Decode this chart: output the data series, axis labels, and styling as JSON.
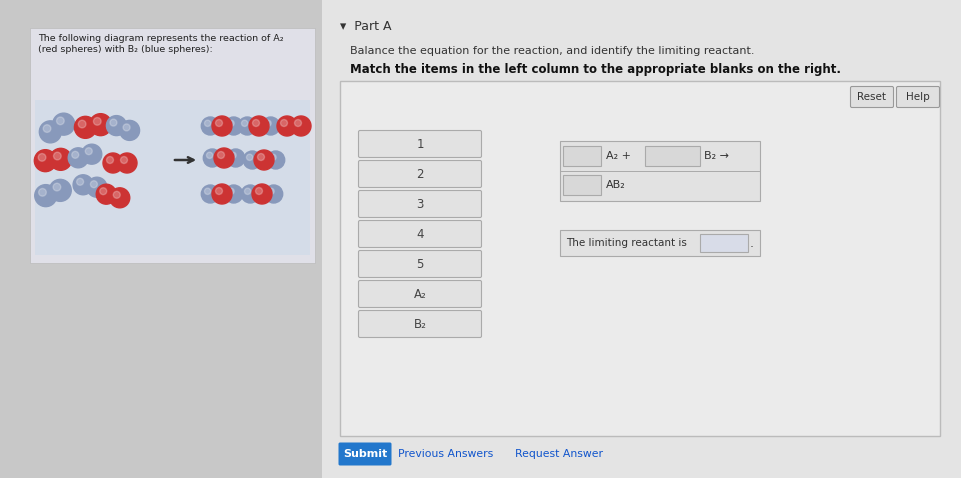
{
  "overall_bg": "#c8c8c8",
  "left_panel_bg": "#e0e0e8",
  "left_box_bg": "#d4dce8",
  "right_panel_bg": "#e8e8e8",
  "inner_panel_bg": "#ebebeb",
  "inner_panel_border": "#cccccc",
  "left_panel_text": "The following diagram represents the reaction of A₂\n(red spheres) with B₂ (blue spheres):",
  "part_a_label": "▾  Part A",
  "instruction1": "Balance the equation for the reaction, and identify the limiting reactant.",
  "instruction2": "Match the items in the left column to the appropriate blanks on the right.",
  "left_items": [
    "1",
    "2",
    "3",
    "4",
    "5",
    "A₂",
    "B₂"
  ],
  "submit_btn_color": "#2277cc",
  "submit_btn_text": "Submit",
  "prev_ans_text": "Previous Answers",
  "req_ans_text": "Request Answer",
  "reset_btn_text": "Reset",
  "help_btn_text": "Help",
  "sphere_red": "#cc3333",
  "sphere_blue": "#8899bb",
  "sphere_red_dark": "#aa2222",
  "sphere_blue_dark": "#6677aa"
}
